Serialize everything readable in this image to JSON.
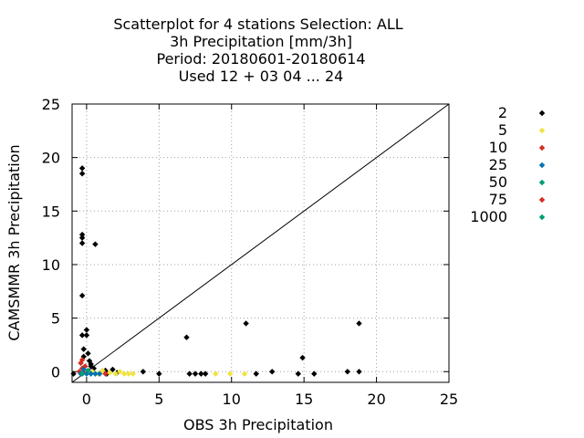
{
  "chart_data": {
    "type": "scatter",
    "title_lines": [
      "Scatterplot for    4 stations Selection: ALL",
      "3h Precipitation [mm/3h]",
      "Period: 20180601-20180614",
      "Used  12 + 03 04 ... 24"
    ],
    "xlabel": "OBS 3h Precipitation",
    "ylabel": "CAMSMMR 3h Precipitation",
    "xlim": [
      -1,
      25
    ],
    "ylim": [
      -1,
      25
    ],
    "xticks": [
      0,
      5,
      10,
      15,
      20,
      25
    ],
    "yticks": [
      0,
      5,
      10,
      15,
      20,
      25
    ],
    "grid": true,
    "diagonal_line": true,
    "legend_position": "right",
    "series": [
      {
        "name": "2",
        "color": "#000000",
        "points": [
          [
            -0.3,
            19.0
          ],
          [
            -0.3,
            18.5
          ],
          [
            -0.3,
            12.8
          ],
          [
            -0.3,
            12.5
          ],
          [
            -0.3,
            12.0
          ],
          [
            0.6,
            11.9
          ],
          [
            -0.3,
            7.1
          ],
          [
            0.0,
            3.9
          ],
          [
            -0.3,
            3.4
          ],
          [
            0.0,
            3.4
          ],
          [
            -0.2,
            2.1
          ],
          [
            0.1,
            1.7
          ],
          [
            -0.2,
            1.4
          ],
          [
            0.2,
            1.0
          ],
          [
            0.3,
            0.7
          ],
          [
            0.3,
            0.5
          ],
          [
            0.5,
            0.3
          ],
          [
            1.3,
            0.1
          ],
          [
            1.8,
            0.2
          ],
          [
            -0.9,
            -0.2
          ],
          [
            1.4,
            -0.2
          ],
          [
            2.1,
            -0.1
          ],
          [
            3.9,
            0.0
          ],
          [
            5.0,
            -0.2
          ],
          [
            6.9,
            3.2
          ],
          [
            7.1,
            -0.2
          ],
          [
            7.5,
            -0.2
          ],
          [
            7.9,
            -0.2
          ],
          [
            8.2,
            -0.2
          ],
          [
            11.0,
            4.5
          ],
          [
            11.7,
            -0.2
          ],
          [
            12.8,
            0.0
          ],
          [
            14.6,
            -0.2
          ],
          [
            14.9,
            1.3
          ],
          [
            15.7,
            -0.2
          ],
          [
            18.0,
            0.0
          ],
          [
            18.8,
            0.0
          ],
          [
            18.8,
            4.5
          ]
        ]
      },
      {
        "name": "5",
        "color": "#f0e442",
        "points": [
          [
            0.4,
            0.0
          ],
          [
            0.8,
            -0.2
          ],
          [
            1.1,
            0.1
          ],
          [
            1.6,
            -0.1
          ],
          [
            2.0,
            -0.2
          ],
          [
            2.3,
            0.0
          ],
          [
            2.6,
            -0.2
          ],
          [
            2.9,
            -0.2
          ],
          [
            3.2,
            -0.2
          ],
          [
            8.9,
            -0.2
          ],
          [
            9.9,
            -0.2
          ],
          [
            10.9,
            -0.2
          ]
        ]
      },
      {
        "name": "10",
        "color": "#d62d20",
        "points": [
          [
            -0.3,
            1.1
          ],
          [
            -0.4,
            0.8
          ],
          [
            -0.3,
            0.3
          ],
          [
            -0.5,
            0.0
          ],
          [
            -0.2,
            -0.1
          ],
          [
            1.3,
            -0.2
          ],
          [
            -0.1,
            0.5
          ]
        ]
      },
      {
        "name": "25",
        "color": "#0072b2",
        "points": [
          [
            -0.2,
            0.2
          ],
          [
            0.0,
            -0.2
          ],
          [
            0.3,
            -0.2
          ],
          [
            0.6,
            -0.2
          ],
          [
            0.9,
            -0.2
          ],
          [
            -0.4,
            -0.2
          ]
        ]
      },
      {
        "name": "50",
        "color": "#009e73",
        "points": [
          [
            -0.3,
            -0.2
          ],
          [
            0.1,
            0.1
          ]
        ]
      },
      {
        "name": "75",
        "color": "#d62d20",
        "points": []
      },
      {
        "name": "1000",
        "color": "#009e73",
        "points": []
      }
    ]
  }
}
